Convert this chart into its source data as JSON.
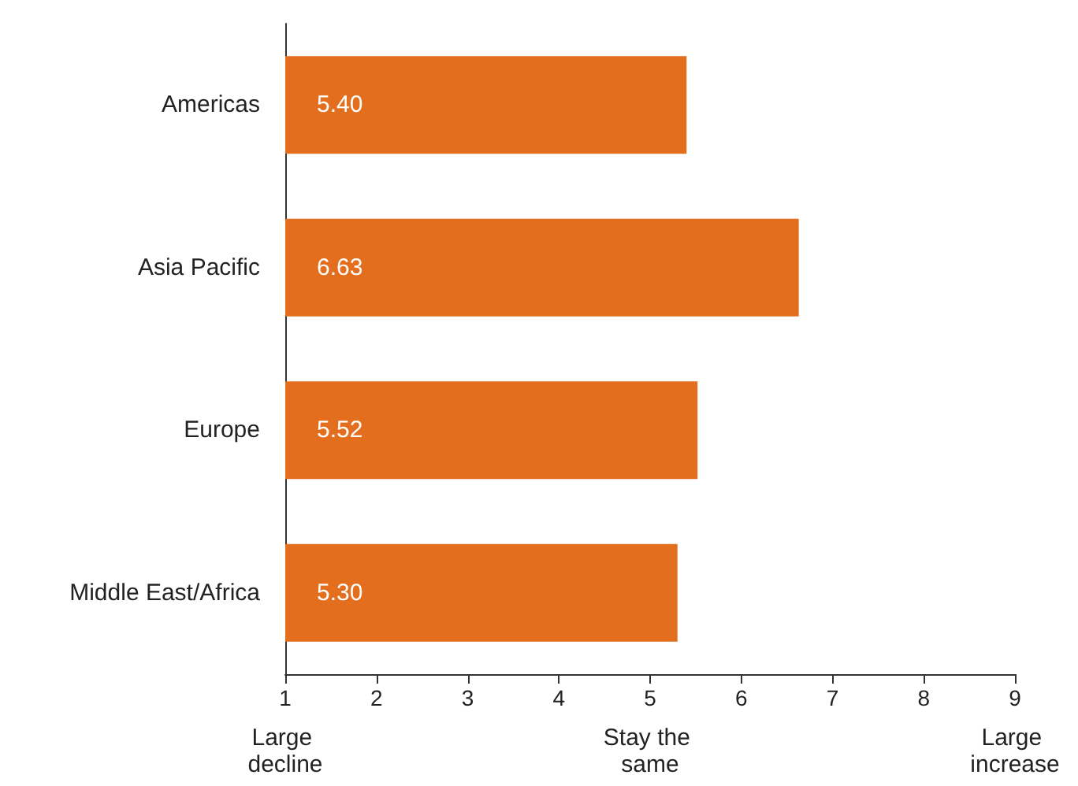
{
  "chart_data": {
    "type": "bar",
    "orientation": "horizontal",
    "categories": [
      "Americas",
      "Asia Pacific",
      "Europe",
      "Middle East/Africa"
    ],
    "values": [
      5.4,
      6.63,
      5.52,
      5.3
    ],
    "value_labels": [
      "5.40",
      "6.63",
      "5.52",
      "5.30"
    ],
    "color": "#e36f1e",
    "xlim": [
      1,
      9
    ],
    "xticks": [
      1,
      2,
      3,
      4,
      5,
      6,
      7,
      8,
      9
    ],
    "grid": false,
    "annotations": [
      "Large decline",
      "Stay the same",
      "Large increase"
    ]
  }
}
